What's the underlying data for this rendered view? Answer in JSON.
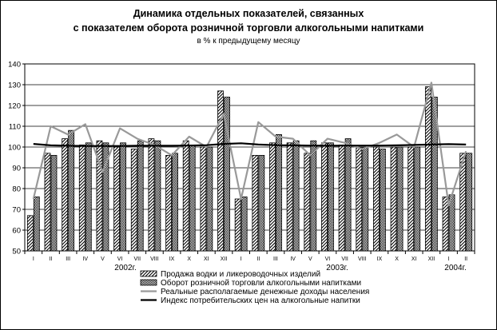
{
  "chart_data": {
    "type": "bar",
    "title_line1": "Динамика отдельных показателей, связанных",
    "title_line2": "с показателем оборота розничной торговли алкогольными напитками",
    "subtitle": "в % к предыдущему месяцу",
    "ylim": [
      50,
      140
    ],
    "yticks": [
      50,
      60,
      70,
      80,
      90,
      100,
      110,
      120,
      130,
      140
    ],
    "grid": true,
    "legend_position": "bottom",
    "months": [
      "I",
      "II",
      "III",
      "IV",
      "V",
      "VI",
      "VII",
      "VIII",
      "IX",
      "X",
      "XI",
      "XII",
      "I",
      "II",
      "III",
      "IV",
      "V",
      "VI",
      "VII",
      "VIII",
      "IX",
      "X",
      "XI",
      "XII",
      "I",
      "II"
    ],
    "years": [
      {
        "label": "2002г.",
        "first_index": 0,
        "last_index": 11
      },
      {
        "label": "2003г.",
        "first_index": 12,
        "last_index": 23
      },
      {
        "label": "2004г.",
        "first_index": 24,
        "last_index": 25
      }
    ],
    "series": [
      {
        "name": "Продажа водки и ликероводочных изделий",
        "kind": "bar",
        "pattern": "diagonal",
        "values": [
          67,
          97,
          104,
          101,
          103,
          100,
          99,
          104,
          96,
          103,
          100,
          127,
          75,
          96,
          102,
          102,
          97,
          102,
          101,
          100,
          100,
          100,
          100,
          129,
          76,
          97
        ]
      },
      {
        "name": "Оборот розничной торговли алкогольными напитками",
        "kind": "bar",
        "pattern": "checker",
        "values": [
          76,
          96,
          108,
          102,
          102,
          102,
          103,
          103,
          97,
          101,
          100,
          124,
          76,
          96,
          106,
          103,
          103,
          102,
          104,
          100,
          99,
          100,
          100,
          124,
          77,
          97
        ]
      },
      {
        "name": "Реальные располагаемые денежные доходы населения",
        "kind": "line",
        "color": "#999999",
        "values": [
          75,
          110,
          106,
          111,
          88,
          109,
          104,
          101,
          96,
          105,
          100,
          116,
          75,
          112,
          105,
          104,
          96,
          104,
          102,
          99,
          102,
          106,
          100,
          131,
          72,
          98
        ]
      },
      {
        "name": "Индекс потребительских цен на алкогольные напитки",
        "kind": "line",
        "color": "#000000",
        "values": [
          101.5,
          100.8,
          100.6,
          100.5,
          100.5,
          100.5,
          100.6,
          100.6,
          100.6,
          100.7,
          100.9,
          101.5,
          101.8,
          101.2,
          100.9,
          100.8,
          100.7,
          100.6,
          100.7,
          100.7,
          100.7,
          100.8,
          101.0,
          101.2,
          101.4,
          101.2
        ]
      }
    ]
  }
}
